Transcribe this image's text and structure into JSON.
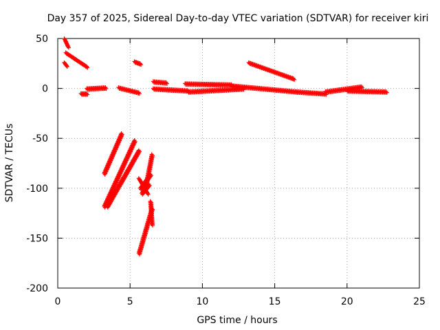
{
  "chart_data": {
    "type": "scatter",
    "title": "Day 357 of 2025, Sidereal Day-to-day VTEC variation (SDTVAR) for receiver kiri",
    "xlabel": "GPS time / hours",
    "ylabel": "SDTVAR / TECUs",
    "xlim": [
      0,
      25
    ],
    "ylim": [
      -200,
      50
    ],
    "xticks": [
      0,
      5,
      10,
      15,
      20,
      25
    ],
    "yticks": [
      -200,
      -150,
      -100,
      -50,
      0,
      50
    ],
    "grid": true,
    "marker": "plus",
    "color": "#ff0000",
    "segments": [
      {
        "x": [
          0.45,
          0.7
        ],
        "y": [
          50,
          42
        ]
      },
      {
        "x": [
          0.55,
          2.0
        ],
        "y": [
          36,
          22
        ]
      },
      {
        "x": [
          0.45,
          0.6
        ],
        "y": [
          26,
          23
        ]
      },
      {
        "x": [
          1.6,
          2.0
        ],
        "y": [
          -5,
          -5
        ]
      },
      {
        "x": [
          2.0,
          3.3
        ],
        "y": [
          0,
          1
        ]
      },
      {
        "x": [
          4.2,
          5.6
        ],
        "y": [
          1,
          -4
        ]
      },
      {
        "x": [
          5.3,
          5.7
        ],
        "y": [
          27,
          25
        ]
      },
      {
        "x": [
          6.6,
          7.5
        ],
        "y": [
          7,
          6
        ]
      },
      {
        "x": [
          6.6,
          9.0
        ],
        "y": [
          0,
          -2
        ]
      },
      {
        "x": [
          8.8,
          12.0
        ],
        "y": [
          5,
          4
        ]
      },
      {
        "x": [
          9.0,
          12.8
        ],
        "y": [
          -3,
          0
        ]
      },
      {
        "x": [
          12.0,
          16.5
        ],
        "y": [
          3,
          -3
        ]
      },
      {
        "x": [
          13.2,
          16.3
        ],
        "y": [
          26,
          10
        ]
      },
      {
        "x": [
          16.5,
          18.5
        ],
        "y": [
          -3,
          -5
        ]
      },
      {
        "x": [
          18.5,
          21.0
        ],
        "y": [
          -3,
          2
        ]
      },
      {
        "x": [
          20.0,
          22.7
        ],
        "y": [
          -2,
          -3
        ]
      },
      {
        "x": [
          3.2,
          4.4
        ],
        "y": [
          -85,
          -45
        ]
      },
      {
        "x": [
          3.2,
          5.3
        ],
        "y": [
          -118,
          -52
        ]
      },
      {
        "x": [
          3.4,
          5.6
        ],
        "y": [
          -118,
          -62
        ]
      },
      {
        "x": [
          5.6,
          6.2
        ],
        "y": [
          -90,
          -105
        ]
      },
      {
        "x": [
          5.7,
          6.4
        ],
        "y": [
          -100,
          -86
        ]
      },
      {
        "x": [
          5.8,
          6.3
        ],
        "y": [
          -105,
          -96
        ]
      },
      {
        "x": [
          6.1,
          6.5
        ],
        "y": [
          -96,
          -66
        ]
      },
      {
        "x": [
          5.6,
          6.5
        ],
        "y": [
          -165,
          -120
        ]
      },
      {
        "x": [
          6.4,
          6.5
        ],
        "y": [
          -113,
          -136
        ]
      }
    ]
  }
}
